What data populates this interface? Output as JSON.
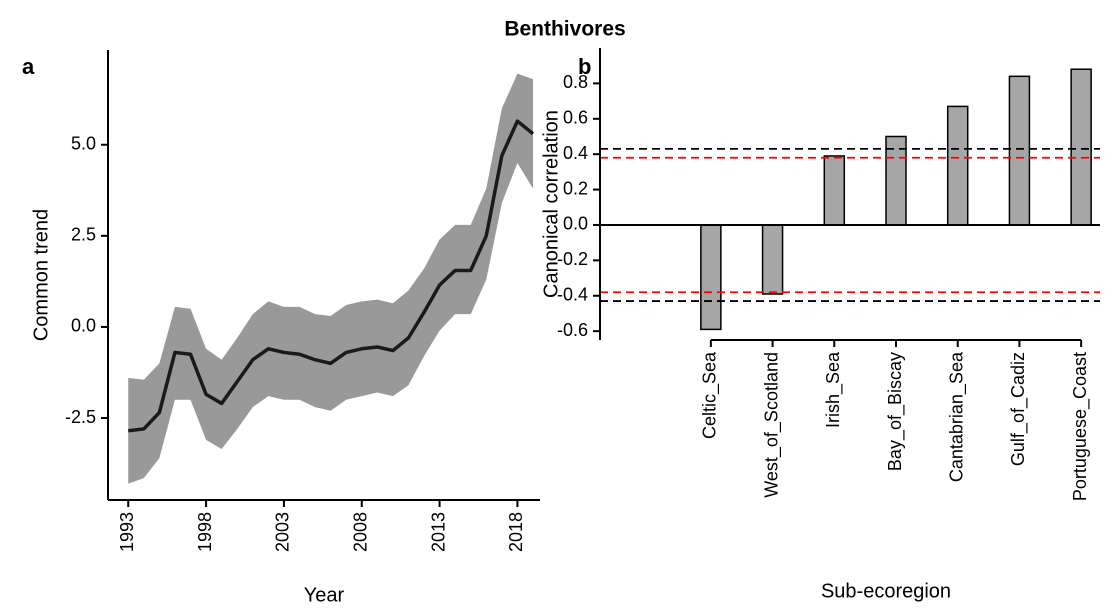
{
  "title": "Benthivores",
  "chart_data": [
    {
      "type": "line",
      "label": "a",
      "xlabel": "Year",
      "ylabel": "Common trend",
      "x": [
        1993,
        1994,
        1995,
        1996,
        1997,
        1998,
        1999,
        2000,
        2001,
        2002,
        2003,
        2004,
        2005,
        2006,
        2007,
        2008,
        2009,
        2010,
        2011,
        2012,
        2013,
        2014,
        2015,
        2016,
        2017,
        2018,
        2019
      ],
      "values": [
        -2.85,
        -2.8,
        -2.35,
        -0.7,
        -0.75,
        -1.85,
        -2.1,
        -1.5,
        -0.9,
        -0.6,
        -0.7,
        -0.75,
        -0.9,
        -1.0,
        -0.7,
        -0.6,
        -0.55,
        -0.65,
        -0.3,
        0.4,
        1.15,
        1.55,
        1.55,
        2.5,
        4.7,
        5.65,
        5.3
      ],
      "upper": [
        -1.4,
        -1.45,
        -1.0,
        0.55,
        0.5,
        -0.6,
        -0.9,
        -0.3,
        0.35,
        0.7,
        0.55,
        0.55,
        0.35,
        0.3,
        0.6,
        0.7,
        0.75,
        0.65,
        1.0,
        1.6,
        2.4,
        2.8,
        2.8,
        3.8,
        6.0,
        6.95,
        6.8
      ],
      "lower": [
        -4.3,
        -4.15,
        -3.6,
        -2.0,
        -2.0,
        -3.1,
        -3.35,
        -2.8,
        -2.2,
        -1.9,
        -2.0,
        -2.0,
        -2.2,
        -2.3,
        -2.0,
        -1.9,
        -1.8,
        -1.9,
        -1.6,
        -0.8,
        -0.1,
        0.35,
        0.35,
        1.3,
        3.4,
        4.5,
        3.8
      ],
      "color": "#1a1a1a",
      "band_color": "#999999",
      "xlim": [
        1991.7,
        2019.45
      ],
      "xticks": [
        1993,
        1998,
        2003,
        2008,
        2013,
        2018
      ],
      "ylim": [
        -4.75,
        7.6
      ],
      "yticks": [
        -2.5,
        {
          "value": 0,
          "label": "0.0"
        },
        2.5,
        {
          "value": 5,
          "label": "5.0"
        }
      ]
    },
    {
      "type": "bar",
      "label": "b",
      "xlabel": "Sub-ecoregion",
      "ylabel": "Canonical correlation",
      "categories": [
        "Celtic_Sea",
        "West_of_Scotland",
        "Irish_Sea",
        "Bay_of_Biscay",
        "Cantabrian_Sea",
        "Gulf_of_Cadiz",
        "Portuguese_Coast"
      ],
      "values": [
        -0.59,
        -0.39,
        0.39,
        0.5,
        0.67,
        0.84,
        0.88
      ],
      "color": "#a6a6a6",
      "ylim": [
        -0.65,
        1.0
      ],
      "yticks": [
        -0.6,
        -0.4,
        -0.2,
        {
          "value": 0,
          "label": "0.0"
        },
        0.2,
        0.4,
        0.6,
        0.8
      ],
      "hlines": [
        {
          "value": 0.43,
          "color": "#000000"
        },
        {
          "value": 0.38,
          "color": "#ff0000"
        },
        {
          "value": -0.38,
          "color": "#ff0000"
        },
        {
          "value": -0.43,
          "color": "#000000"
        }
      ]
    }
  ]
}
